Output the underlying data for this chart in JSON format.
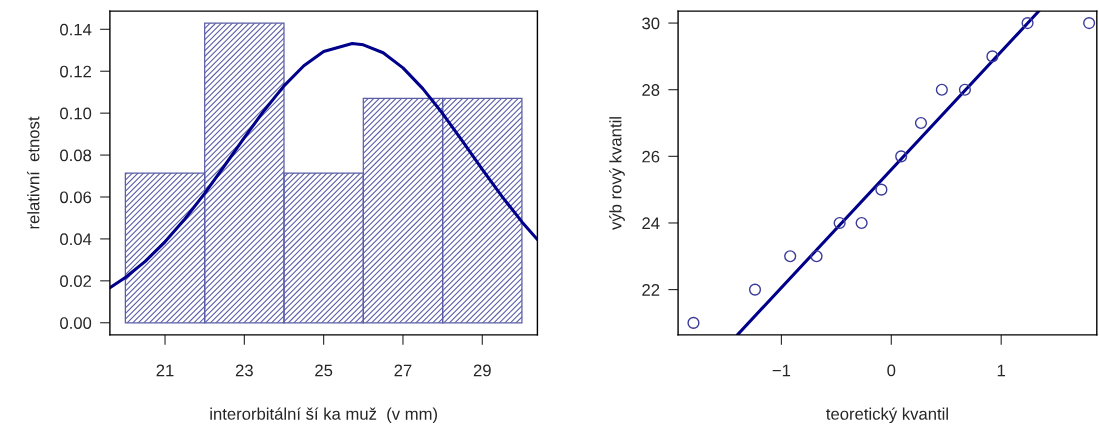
{
  "chart_data": [
    {
      "type": "histogram",
      "xlabel": "interorbitální ší ka muž  (v mm)",
      "ylabel": "relativní  etnost",
      "color": "#5b5ea6",
      "bins": [
        20,
        22,
        24,
        26,
        28,
        30
      ],
      "values": [
        0.0714,
        0.1429,
        0.0714,
        0.1071,
        0.1071
      ],
      "xlim": [
        19.61,
        30.39
      ],
      "ylim": [
        -0.0058,
        0.1487
      ],
      "xticks": [
        21,
        23,
        25,
        27,
        29
      ],
      "yticks": [
        {
          "value": 0,
          "label": "0.00"
        },
        {
          "value": 0.02,
          "label": "0.02"
        },
        {
          "value": 0.04,
          "label": "0.04"
        },
        {
          "value": 0.06,
          "label": "0.06"
        },
        {
          "value": 0.08,
          "label": "0.08"
        },
        {
          "value": 0.1,
          "label": "0.10"
        },
        {
          "value": 0.12,
          "label": "0.12"
        },
        {
          "value": 0.14,
          "label": "0.14"
        }
      ],
      "series": [
        {
          "type": "line",
          "color": "#00008b",
          "x": [
            19.61,
            20,
            20.5,
            21,
            21.5,
            22,
            22.5,
            23,
            23.5,
            24,
            24.5,
            25,
            25.72,
            26,
            26.5,
            27,
            27.5,
            28,
            28.5,
            29,
            29.5,
            30,
            30.39
          ],
          "values": [
            0.0167,
            0.0216,
            0.0293,
            0.0386,
            0.0495,
            0.0617,
            0.0749,
            0.0883,
            0.1013,
            0.113,
            0.1226,
            0.1294,
            0.1332,
            0.1326,
            0.1288,
            0.1216,
            0.1117,
            0.0998,
            0.0867,
            0.0732,
            0.0602,
            0.0481,
            0.0397
          ]
        }
      ]
    },
    {
      "type": "scatter",
      "xlabel": "teoretický kvantil",
      "ylabel": "výb rový kvantil",
      "xlim": [
        -1.94,
        1.87
      ],
      "ylim": [
        20.64,
        30.36
      ],
      "xticks": [
        {
          "value": -1,
          "label": "−1"
        },
        0,
        1
      ],
      "yticks": [
        22,
        24,
        26,
        28,
        30
      ],
      "series": [
        {
          "type": "scatter",
          "marker": "circle",
          "color": "#3a3a9a",
          "x": [
            -1.8,
            -1.24,
            -0.92,
            -0.68,
            -0.47,
            -0.27,
            -0.09,
            0.09,
            0.27,
            0.46,
            0.67,
            0.92,
            1.24,
            1.8
          ],
          "values": [
            21,
            22,
            23,
            23,
            24,
            24,
            25,
            26,
            27,
            28,
            28,
            29,
            30,
            30
          ]
        },
        {
          "type": "line",
          "color": "#00008b",
          "x": [
            -1.4,
            1.343
          ],
          "values": [
            20.64,
            30.36
          ]
        }
      ]
    }
  ]
}
